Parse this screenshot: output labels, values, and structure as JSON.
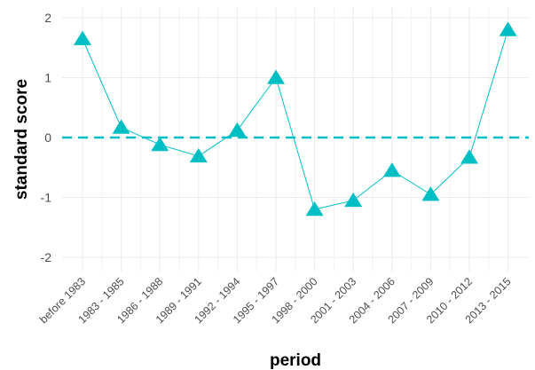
{
  "chart_data": {
    "type": "line",
    "title": "",
    "xlabel": "period",
    "ylabel": "standard score",
    "categories": [
      "before 1983",
      "1983 - 1985",
      "1986 - 1988",
      "1989 - 1991",
      "1992 - 1994",
      "1995 - 1997",
      "1998 - 2000",
      "2001 - 2003",
      "2004 - 2006",
      "2007 - 2009",
      "2010 - 2012",
      "2013 - 2015"
    ],
    "series": [
      {
        "values": [
          1.65,
          0.17,
          -0.12,
          -0.31,
          0.12,
          1.0,
          -1.2,
          -1.05,
          -0.55,
          -0.95,
          -0.33,
          1.8
        ],
        "color": "#00bfc4",
        "marker": "triangle"
      }
    ],
    "reference_line": {
      "y": 0,
      "style": "dashed",
      "color": "#00bfc4"
    },
    "yticks": [
      -2,
      -1,
      0,
      1,
      2
    ],
    "ylim": [
      -2.2,
      2.15
    ],
    "grid": true,
    "legend": "none"
  }
}
